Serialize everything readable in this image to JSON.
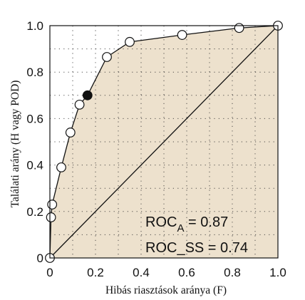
{
  "chart_data": {
    "type": "line",
    "xlabel": "Hibás riasztások aránya (F)",
    "ylabel": "Találati arány (H vagy POD)",
    "xlim": [
      0,
      1
    ],
    "ylim": [
      0,
      1
    ],
    "grid": true,
    "x_ticks": [
      "0",
      "0.2",
      "0.4",
      "0.6",
      "0.8",
      "1.0"
    ],
    "y_ticks": [
      "0",
      "0.2",
      "0.4",
      "0.6",
      "0.8",
      "1.0"
    ],
    "series": [
      {
        "x": [
          0.0,
          0.005,
          0.01,
          0.05,
          0.09,
          0.13,
          0.165,
          0.25,
          0.35,
          0.58,
          0.83,
          1.0
        ],
        "y": [
          0.0,
          0.175,
          0.23,
          0.39,
          0.54,
          0.66,
          0.7,
          0.865,
          0.93,
          0.96,
          0.99,
          1.0
        ],
        "highlighted_point_index": 6
      }
    ],
    "diagonal_reference": {
      "x": [
        0,
        1
      ],
      "y": [
        0,
        1
      ]
    },
    "annotations": {
      "roc_a_main": "ROC",
      "roc_a_sub": "A",
      "roc_a_value": " = 0.87",
      "roc_ss": "ROC_SS = 0.74"
    },
    "colors": {
      "area_fill": "#ede1cd",
      "line": "#111111",
      "marker_fill": "#ffffff",
      "highlight_marker": "#111111",
      "grid": "#333333"
    }
  }
}
